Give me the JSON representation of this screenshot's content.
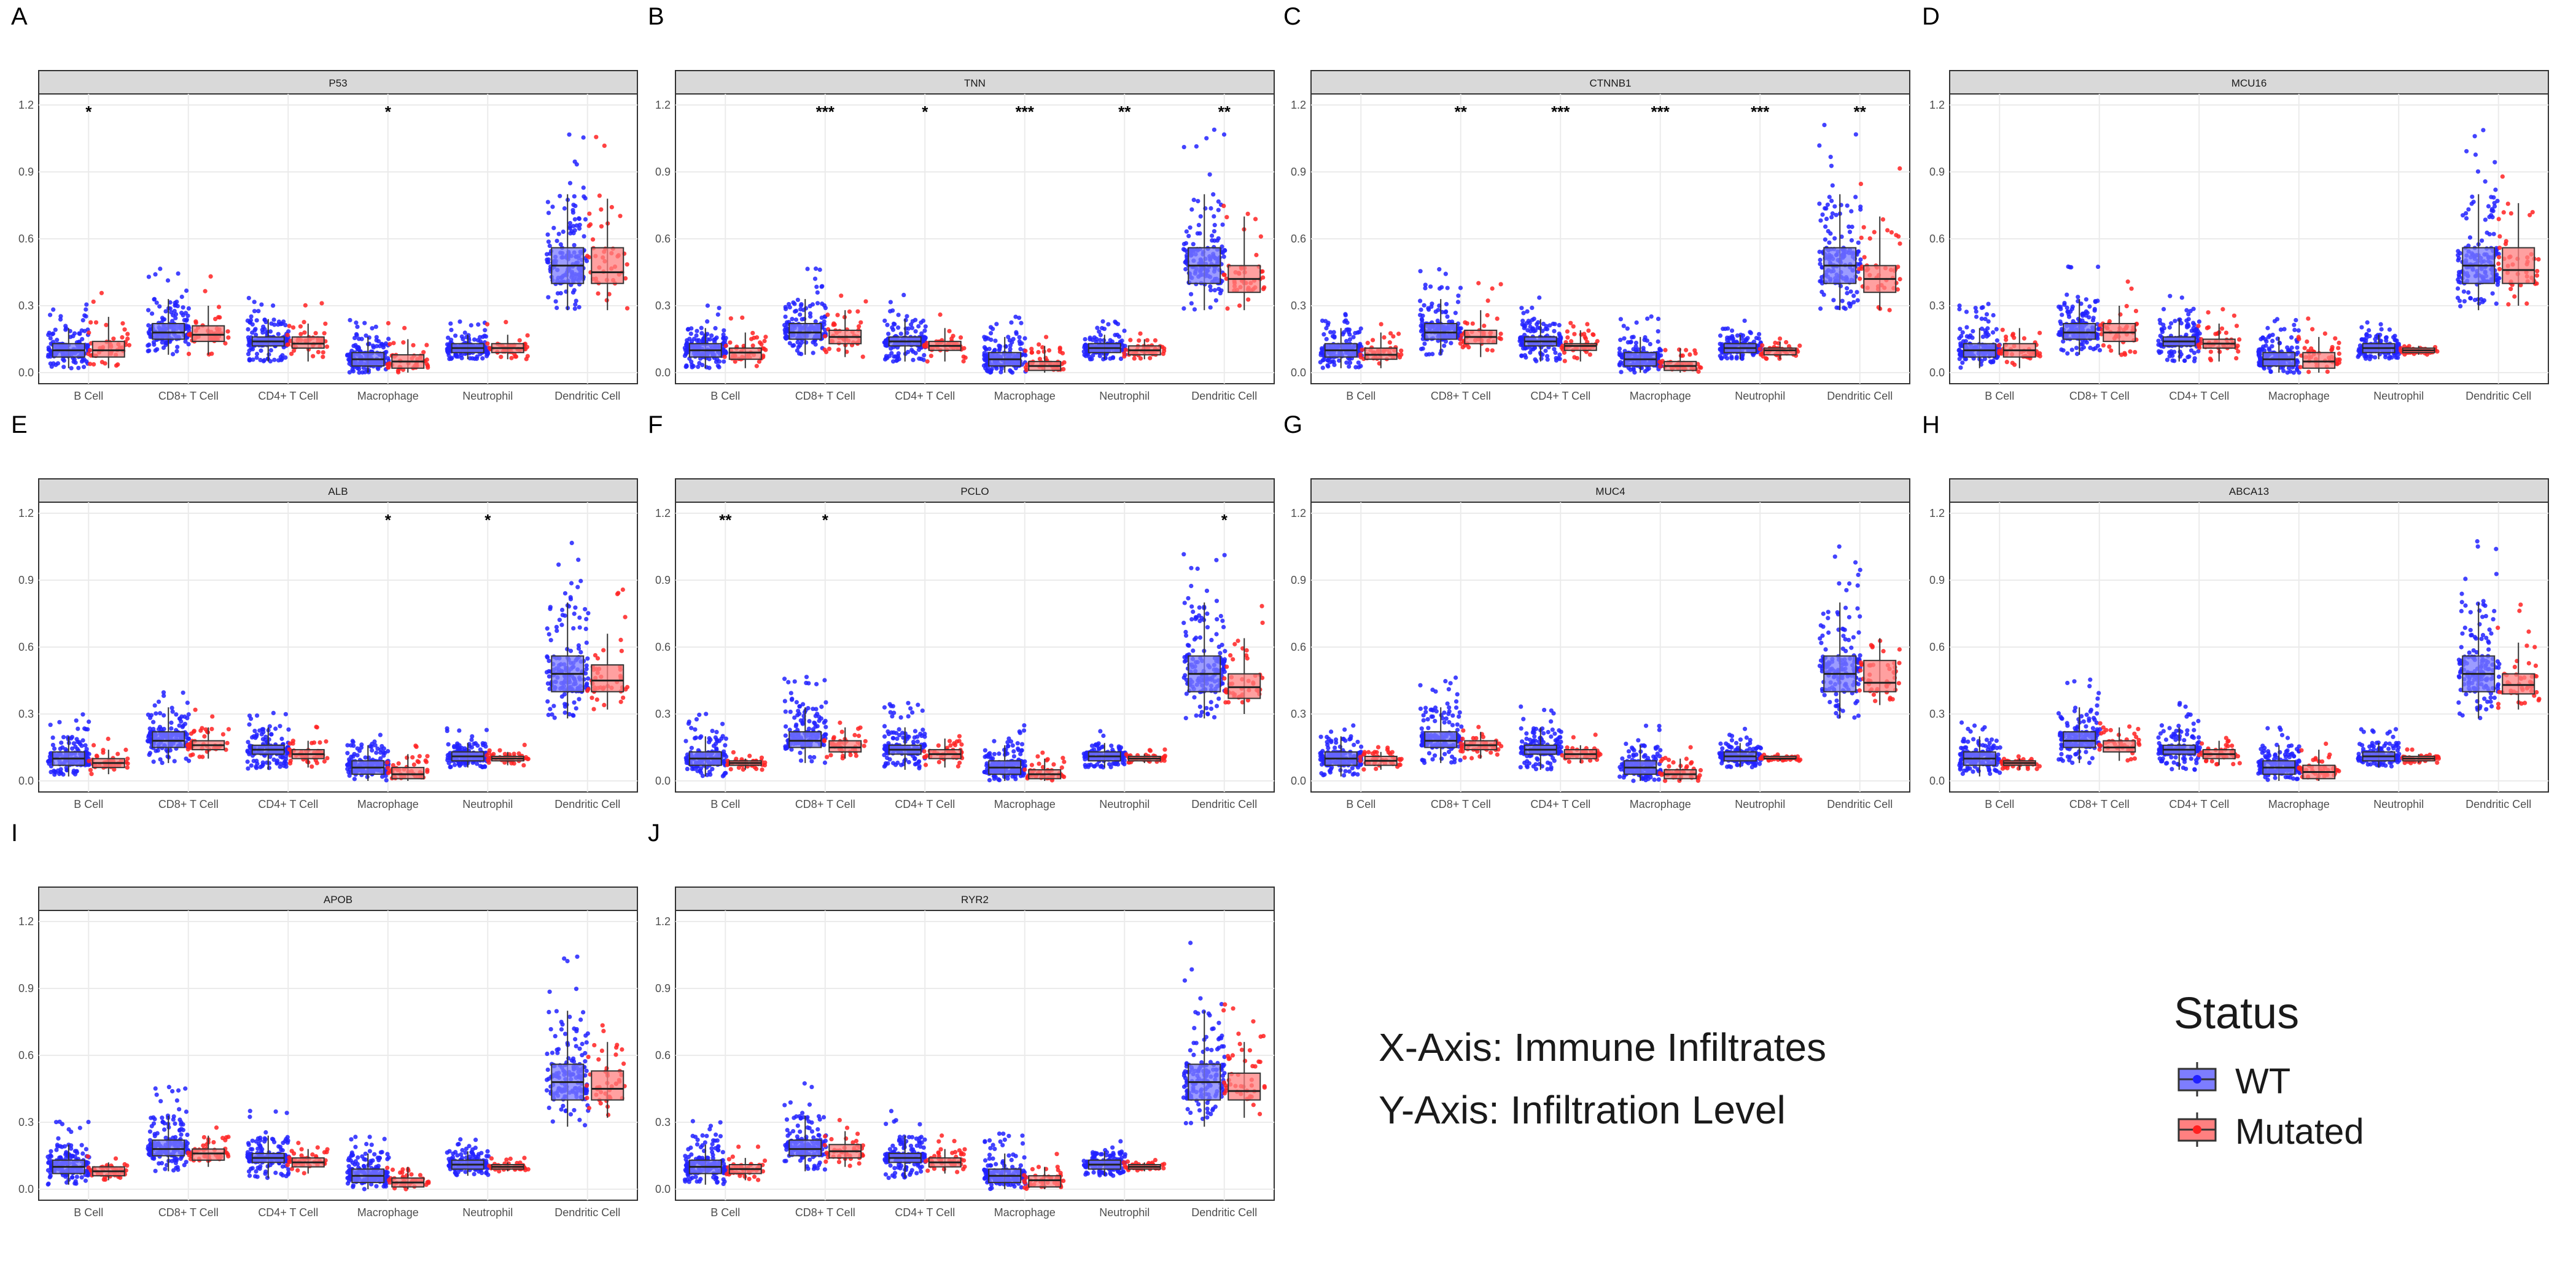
{
  "chart_data": {
    "type": "boxplot",
    "x_axis_note": "X-Axis: Immune Infiltrates",
    "y_axis_note": "Y-Axis: Infiltration Level",
    "legend": {
      "title": "Status",
      "entries": [
        {
          "label": "WT",
          "color": "#4040ff"
        },
        {
          "label": "Mutated",
          "color": "#ff4040"
        }
      ]
    },
    "categories": [
      "B Cell",
      "CD8+ T Cell",
      "CD4+ T Cell",
      "Macrophage",
      "Neutrophil",
      "Dendritic Cell"
    ],
    "y_ticks": [
      "0.0",
      "0.3",
      "0.6",
      "0.9",
      "1.2"
    ],
    "ylim": [
      0,
      1.2
    ],
    "panels": [
      {
        "letter": "A",
        "gene": "P53",
        "wt": [
          [
            0.02,
            0.07,
            0.1,
            0.13,
            0.2
          ],
          [
            0.08,
            0.15,
            0.18,
            0.22,
            0.33
          ],
          [
            0.05,
            0.12,
            0.14,
            0.16,
            0.24
          ],
          [
            0.0,
            0.03,
            0.06,
            0.09,
            0.16
          ],
          [
            0.06,
            0.09,
            0.11,
            0.13,
            0.17
          ],
          [
            0.28,
            0.4,
            0.48,
            0.56,
            0.8
          ]
        ],
        "mut": [
          [
            0.02,
            0.07,
            0.1,
            0.14,
            0.25
          ],
          [
            0.08,
            0.14,
            0.17,
            0.21,
            0.3
          ],
          [
            0.05,
            0.11,
            0.13,
            0.16,
            0.22
          ],
          [
            0.0,
            0.02,
            0.05,
            0.08,
            0.15
          ],
          [
            0.06,
            0.09,
            0.11,
            0.13,
            0.17
          ],
          [
            0.28,
            0.4,
            0.45,
            0.56,
            0.78
          ]
        ],
        "sig": [
          "*",
          "",
          "",
          "*",
          "",
          ""
        ]
      },
      {
        "letter": "B",
        "gene": "TNN",
        "wt": [
          [
            0.02,
            0.07,
            0.1,
            0.13,
            0.2
          ],
          [
            0.08,
            0.15,
            0.18,
            0.22,
            0.33
          ],
          [
            0.05,
            0.12,
            0.14,
            0.16,
            0.24
          ],
          [
            0.0,
            0.03,
            0.06,
            0.09,
            0.16
          ],
          [
            0.06,
            0.09,
            0.11,
            0.13,
            0.17
          ],
          [
            0.28,
            0.4,
            0.48,
            0.56,
            0.8
          ]
        ],
        "mut": [
          [
            0.02,
            0.06,
            0.09,
            0.11,
            0.18
          ],
          [
            0.07,
            0.13,
            0.16,
            0.19,
            0.28
          ],
          [
            0.05,
            0.1,
            0.12,
            0.14,
            0.2
          ],
          [
            0.0,
            0.01,
            0.03,
            0.05,
            0.12
          ],
          [
            0.06,
            0.08,
            0.1,
            0.12,
            0.15
          ],
          [
            0.28,
            0.36,
            0.42,
            0.48,
            0.7
          ]
        ],
        "sig": [
          "",
          "***",
          "*",
          "***",
          "**",
          "**"
        ]
      },
      {
        "letter": "C",
        "gene": "CTNNB1",
        "wt": [
          [
            0.02,
            0.07,
            0.1,
            0.13,
            0.2
          ],
          [
            0.08,
            0.15,
            0.18,
            0.22,
            0.33
          ],
          [
            0.05,
            0.12,
            0.14,
            0.16,
            0.24
          ],
          [
            0.0,
            0.03,
            0.06,
            0.09,
            0.16
          ],
          [
            0.06,
            0.09,
            0.11,
            0.13,
            0.17
          ],
          [
            0.28,
            0.4,
            0.48,
            0.56,
            0.8
          ]
        ],
        "mut": [
          [
            0.02,
            0.06,
            0.08,
            0.11,
            0.18
          ],
          [
            0.07,
            0.13,
            0.16,
            0.19,
            0.28
          ],
          [
            0.05,
            0.1,
            0.12,
            0.13,
            0.19
          ],
          [
            0.0,
            0.01,
            0.03,
            0.05,
            0.11
          ],
          [
            0.06,
            0.08,
            0.1,
            0.11,
            0.14
          ],
          [
            0.28,
            0.36,
            0.42,
            0.48,
            0.7
          ]
        ],
        "sig": [
          "",
          "**",
          "***",
          "***",
          "***",
          "**"
        ]
      },
      {
        "letter": "D",
        "gene": "MCU16",
        "wt": [
          [
            0.02,
            0.07,
            0.1,
            0.13,
            0.2
          ],
          [
            0.08,
            0.15,
            0.18,
            0.22,
            0.33
          ],
          [
            0.05,
            0.12,
            0.14,
            0.16,
            0.24
          ],
          [
            0.0,
            0.03,
            0.06,
            0.09,
            0.16
          ],
          [
            0.06,
            0.09,
            0.11,
            0.13,
            0.17
          ],
          [
            0.28,
            0.4,
            0.48,
            0.56,
            0.8
          ]
        ],
        "mut": [
          [
            0.02,
            0.07,
            0.1,
            0.13,
            0.2
          ],
          [
            0.08,
            0.14,
            0.18,
            0.22,
            0.3
          ],
          [
            0.05,
            0.11,
            0.13,
            0.15,
            0.22
          ],
          [
            0.0,
            0.02,
            0.05,
            0.09,
            0.16
          ],
          [
            0.08,
            0.09,
            0.1,
            0.11,
            0.12
          ],
          [
            0.3,
            0.4,
            0.46,
            0.56,
            0.76
          ]
        ],
        "sig": [
          "",
          "",
          "",
          "",
          "",
          ""
        ]
      },
      {
        "letter": "E",
        "gene": "ALB",
        "wt": [
          [
            0.02,
            0.07,
            0.1,
            0.13,
            0.2
          ],
          [
            0.08,
            0.15,
            0.18,
            0.22,
            0.33
          ],
          [
            0.05,
            0.12,
            0.14,
            0.16,
            0.24
          ],
          [
            0.0,
            0.03,
            0.06,
            0.09,
            0.16
          ],
          [
            0.06,
            0.09,
            0.11,
            0.13,
            0.17
          ],
          [
            0.28,
            0.4,
            0.48,
            0.56,
            0.8
          ]
        ],
        "mut": [
          [
            0.03,
            0.06,
            0.08,
            0.1,
            0.14
          ],
          [
            0.1,
            0.14,
            0.16,
            0.18,
            0.24
          ],
          [
            0.06,
            0.1,
            0.12,
            0.14,
            0.18
          ],
          [
            0.0,
            0.01,
            0.03,
            0.06,
            0.12
          ],
          [
            0.07,
            0.09,
            0.1,
            0.11,
            0.13
          ],
          [
            0.32,
            0.4,
            0.45,
            0.52,
            0.66
          ]
        ],
        "sig": [
          "",
          "",
          "",
          "*",
          "*",
          ""
        ]
      },
      {
        "letter": "F",
        "gene": "PCLO",
        "wt": [
          [
            0.02,
            0.07,
            0.1,
            0.13,
            0.2
          ],
          [
            0.08,
            0.15,
            0.18,
            0.22,
            0.33
          ],
          [
            0.05,
            0.12,
            0.14,
            0.16,
            0.24
          ],
          [
            0.0,
            0.03,
            0.06,
            0.09,
            0.16
          ],
          [
            0.06,
            0.09,
            0.11,
            0.13,
            0.17
          ],
          [
            0.28,
            0.4,
            0.48,
            0.56,
            0.8
          ]
        ],
        "mut": [
          [
            0.05,
            0.07,
            0.08,
            0.09,
            0.1
          ],
          [
            0.1,
            0.13,
            0.15,
            0.18,
            0.24
          ],
          [
            0.06,
            0.1,
            0.12,
            0.14,
            0.19
          ],
          [
            0.0,
            0.01,
            0.03,
            0.05,
            0.1
          ],
          [
            0.08,
            0.09,
            0.1,
            0.11,
            0.12
          ],
          [
            0.3,
            0.37,
            0.42,
            0.48,
            0.64
          ]
        ],
        "sig": [
          "**",
          "*",
          "",
          "",
          "",
          "*"
        ]
      },
      {
        "letter": "G",
        "gene": "MUC4",
        "wt": [
          [
            0.02,
            0.07,
            0.1,
            0.13,
            0.2
          ],
          [
            0.08,
            0.15,
            0.18,
            0.22,
            0.33
          ],
          [
            0.05,
            0.12,
            0.14,
            0.16,
            0.24
          ],
          [
            0.0,
            0.03,
            0.06,
            0.09,
            0.16
          ],
          [
            0.06,
            0.09,
            0.11,
            0.13,
            0.17
          ],
          [
            0.28,
            0.4,
            0.48,
            0.56,
            0.8
          ]
        ],
        "mut": [
          [
            0.05,
            0.07,
            0.09,
            0.11,
            0.13
          ],
          [
            0.1,
            0.14,
            0.16,
            0.18,
            0.22
          ],
          [
            0.08,
            0.1,
            0.12,
            0.14,
            0.16
          ],
          [
            0.0,
            0.01,
            0.03,
            0.05,
            0.1
          ],
          [
            0.09,
            0.1,
            0.1,
            0.11,
            0.11
          ],
          [
            0.34,
            0.4,
            0.44,
            0.54,
            0.64
          ]
        ],
        "sig": [
          "",
          "",
          "",
          "",
          "",
          ""
        ]
      },
      {
        "letter": "H",
        "gene": "ABCA13",
        "wt": [
          [
            0.02,
            0.07,
            0.1,
            0.13,
            0.2
          ],
          [
            0.08,
            0.15,
            0.18,
            0.22,
            0.33
          ],
          [
            0.05,
            0.12,
            0.14,
            0.16,
            0.24
          ],
          [
            0.0,
            0.03,
            0.06,
            0.09,
            0.16
          ],
          [
            0.06,
            0.09,
            0.11,
            0.13,
            0.17
          ],
          [
            0.28,
            0.4,
            0.48,
            0.56,
            0.8
          ]
        ],
        "mut": [
          [
            0.05,
            0.07,
            0.08,
            0.09,
            0.1
          ],
          [
            0.09,
            0.13,
            0.15,
            0.18,
            0.24
          ],
          [
            0.07,
            0.1,
            0.12,
            0.14,
            0.18
          ],
          [
            0.0,
            0.01,
            0.04,
            0.07,
            0.14
          ],
          [
            0.08,
            0.09,
            0.1,
            0.11,
            0.12
          ],
          [
            0.32,
            0.39,
            0.43,
            0.48,
            0.62
          ]
        ],
        "sig": [
          "",
          "",
          "",
          "",
          "",
          ""
        ]
      },
      {
        "letter": "I",
        "gene": "APOB",
        "wt": [
          [
            0.02,
            0.07,
            0.1,
            0.13,
            0.2
          ],
          [
            0.08,
            0.15,
            0.18,
            0.22,
            0.33
          ],
          [
            0.05,
            0.12,
            0.14,
            0.16,
            0.24
          ],
          [
            0.0,
            0.03,
            0.06,
            0.09,
            0.16
          ],
          [
            0.06,
            0.09,
            0.11,
            0.13,
            0.17
          ],
          [
            0.28,
            0.4,
            0.48,
            0.56,
            0.8
          ]
        ],
        "mut": [
          [
            0.04,
            0.06,
            0.08,
            0.1,
            0.12
          ],
          [
            0.1,
            0.13,
            0.16,
            0.18,
            0.24
          ],
          [
            0.07,
            0.1,
            0.12,
            0.14,
            0.18
          ],
          [
            0.0,
            0.01,
            0.03,
            0.05,
            0.1
          ],
          [
            0.08,
            0.09,
            0.1,
            0.11,
            0.12
          ],
          [
            0.32,
            0.4,
            0.45,
            0.53,
            0.66
          ]
        ],
        "sig": [
          "",
          "",
          "",
          "",
          "",
          ""
        ]
      },
      {
        "letter": "J",
        "gene": "RYR2",
        "wt": [
          [
            0.02,
            0.07,
            0.1,
            0.13,
            0.2
          ],
          [
            0.08,
            0.15,
            0.18,
            0.22,
            0.33
          ],
          [
            0.05,
            0.12,
            0.14,
            0.16,
            0.24
          ],
          [
            0.0,
            0.03,
            0.06,
            0.09,
            0.16
          ],
          [
            0.06,
            0.09,
            0.11,
            0.13,
            0.17
          ],
          [
            0.28,
            0.4,
            0.48,
            0.56,
            0.8
          ]
        ],
        "mut": [
          [
            0.04,
            0.07,
            0.09,
            0.11,
            0.14
          ],
          [
            0.1,
            0.14,
            0.17,
            0.2,
            0.26
          ],
          [
            0.07,
            0.1,
            0.12,
            0.14,
            0.18
          ],
          [
            0.0,
            0.01,
            0.04,
            0.06,
            0.1
          ],
          [
            0.08,
            0.09,
            0.1,
            0.11,
            0.12
          ],
          [
            0.32,
            0.4,
            0.44,
            0.52,
            0.66
          ]
        ],
        "sig": [
          "",
          "",
          "",
          "",
          "",
          ""
        ]
      }
    ]
  }
}
